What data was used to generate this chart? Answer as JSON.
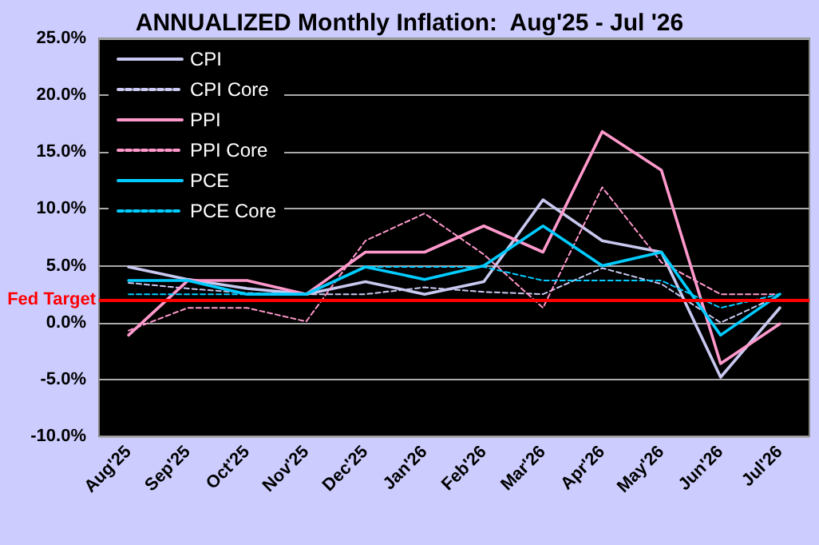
{
  "chart_data": {
    "type": "line",
    "title": "ANNUALIZED Monthly Inflation:  Aug'25 - Jul '26",
    "categories": [
      "Aug'25",
      "Sep'25",
      "Oct'25",
      "Nov'25",
      "Dec'25",
      "Jan'26",
      "Feb'26",
      "Mar'26",
      "Apr'26",
      "May'26",
      "Jun'26",
      "Jul'26"
    ],
    "series": [
      {
        "name": "CPI",
        "color": "#c8c8f0",
        "line_style": "solid",
        "values": [
          4.9,
          3.8,
          3.0,
          2.5,
          3.6,
          2.5,
          3.6,
          10.8,
          7.2,
          6.2,
          -4.8,
          1.3
        ]
      },
      {
        "name": "CPI Core",
        "color": "#c8c8f0",
        "line_style": "dashed",
        "values": [
          3.5,
          3.0,
          2.6,
          2.5,
          2.5,
          3.1,
          2.7,
          2.5,
          4.8,
          3.4,
          0.0,
          2.4
        ]
      },
      {
        "name": "PPI",
        "color": "#ff99cc",
        "line_style": "solid",
        "values": [
          -1.1,
          3.7,
          3.7,
          2.5,
          6.2,
          6.2,
          8.5,
          6.2,
          16.8,
          13.4,
          -3.6,
          -0.1
        ]
      },
      {
        "name": "PPI Core",
        "color": "#ff99cc",
        "line_style": "dashed",
        "values": [
          -0.7,
          1.3,
          1.3,
          0.1,
          7.2,
          9.6,
          6.0,
          1.3,
          11.9,
          5.3,
          2.5,
          2.5
        ]
      },
      {
        "name": "PCE",
        "color": "#00ccff",
        "line_style": "solid",
        "values": [
          3.7,
          3.7,
          2.5,
          2.5,
          4.9,
          3.8,
          5.0,
          8.5,
          5.0,
          6.2,
          -1.1,
          2.5
        ]
      },
      {
        "name": "PCE Core",
        "color": "#00ccff",
        "line_style": "dashed",
        "values": [
          2.5,
          2.5,
          2.5,
          2.5,
          4.9,
          4.9,
          4.9,
          3.7,
          3.7,
          3.7,
          1.3,
          2.5
        ]
      }
    ],
    "ylim": [
      -10,
      25
    ],
    "yticks": [
      {
        "value": -10,
        "label": "-10.0%"
      },
      {
        "value": -5,
        "label": "-5.0%"
      },
      {
        "value": 0,
        "label": "0.0%"
      },
      {
        "value": 5,
        "label": "5.0%"
      },
      {
        "value": 10,
        "label": "10.0%"
      },
      {
        "value": 15,
        "label": "15.0%"
      },
      {
        "value": 20,
        "label": "20.0%"
      },
      {
        "value": 25,
        "label": "25.0%"
      }
    ],
    "ref_lines": [
      {
        "axis": "y",
        "value": 2,
        "label": "Fed Target",
        "color": "#ff0000"
      }
    ],
    "grid": "y",
    "legend": "top left",
    "marker": "none"
  }
}
